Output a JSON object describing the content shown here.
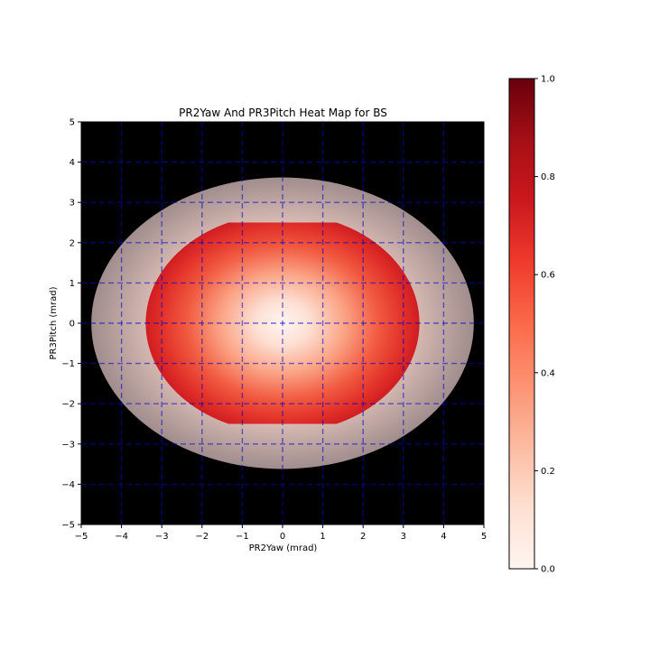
{
  "chart_data": {
    "type": "heatmap",
    "title": "PR2Yaw And PR3Pitch Heat Map for BS",
    "xlabel": "PR2Yaw (mrad)",
    "ylabel": "PR3Pitch (mrad)",
    "xlim": [
      -5,
      5
    ],
    "ylim": [
      -5,
      5
    ],
    "x_ticks": [
      -5,
      -4,
      -3,
      -2,
      -1,
      0,
      1,
      2,
      3,
      4,
      5
    ],
    "y_ticks": [
      -5,
      -4,
      -3,
      -2,
      -1,
      0,
      1,
      2,
      3,
      4,
      5
    ],
    "x_tick_labels": [
      "−5",
      "−4",
      "−3",
      "−2",
      "−1",
      "0",
      "1",
      "2",
      "3",
      "4",
      "5"
    ],
    "y_tick_labels": [
      "−5",
      "−4",
      "−3",
      "−2",
      "−1",
      "0",
      "1",
      "2",
      "3",
      "4",
      "5"
    ],
    "grid": true,
    "grid_style": "dashed",
    "grid_color": "#0000cc",
    "background_color": "#000000",
    "colormap": "Reds",
    "colorbar": {
      "range": [
        0,
        1
      ],
      "ticks": [
        0.0,
        0.2,
        0.4,
        0.6,
        0.8,
        1.0
      ],
      "tick_labels": [
        "0.0",
        "0.2",
        "0.4",
        "0.6",
        "0.8",
        "1.0"
      ],
      "placement": "right"
    },
    "regions": [
      {
        "shape": "ellipse",
        "center": [
          0,
          0
        ],
        "semi_axes": [
          4.75,
          3.62
        ],
        "value_at_center": 0.0,
        "value_at_edge": 0.25,
        "overlay": "translucent"
      },
      {
        "shape": "clipped-ellipse",
        "center": [
          0,
          0
        ],
        "semi_axes": [
          3.4,
          2.72
        ],
        "clip_y": [
          -2.5,
          2.5
        ],
        "value_at_center": 0.0,
        "value_at_edge": 0.78
      }
    ]
  }
}
